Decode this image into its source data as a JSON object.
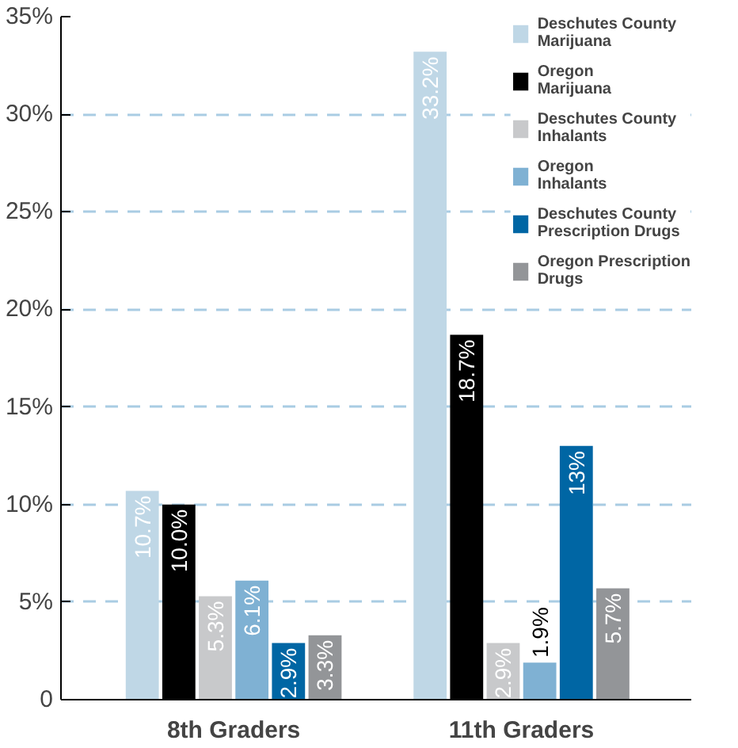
{
  "chart_data": {
    "type": "bar",
    "categories": [
      "8th Graders",
      "11th Graders"
    ],
    "series": [
      {
        "name": "Deschutes County Marijuana",
        "color": "#bfd7e6",
        "values": [
          10.7,
          33.2
        ],
        "value_labels": [
          "10.7%",
          "33.2%"
        ]
      },
      {
        "name": "Oregon Marijuana",
        "color": "#000000",
        "values": [
          10.0,
          18.7
        ],
        "value_labels": [
          "10.0%",
          "18.7%"
        ]
      },
      {
        "name": "Deschutes County Inhalants",
        "color": "#c8c9cb",
        "values": [
          5.3,
          2.9
        ],
        "value_labels": [
          "5.3%",
          "2.9%"
        ]
      },
      {
        "name": "Oregon Inhalants",
        "color": "#7fb1d3",
        "values": [
          6.1,
          1.9
        ],
        "value_labels": [
          "6.1%",
          "1.9%"
        ]
      },
      {
        "name": "Deschutes County Prescription Drugs",
        "color": "#0066a4",
        "values": [
          2.9,
          13
        ],
        "value_labels": [
          "2.9%",
          "13%"
        ]
      },
      {
        "name": "Oregon Prescription Drugs",
        "color": "#939598",
        "values": [
          3.3,
          5.7
        ],
        "value_labels": [
          "3.3%",
          "5.7%"
        ]
      }
    ],
    "ylim": [
      0,
      35
    ],
    "yticks": [
      {
        "value": 0,
        "label": "0"
      },
      {
        "value": 5,
        "label": "5%"
      },
      {
        "value": 10,
        "label": "10%"
      },
      {
        "value": 15,
        "label": "15%"
      },
      {
        "value": 20,
        "label": "20%"
      },
      {
        "value": 25,
        "label": "25%"
      },
      {
        "value": 30,
        "label": "30%"
      },
      {
        "value": 35,
        "label": "35%"
      }
    ],
    "grid": "y",
    "legend": "right"
  }
}
